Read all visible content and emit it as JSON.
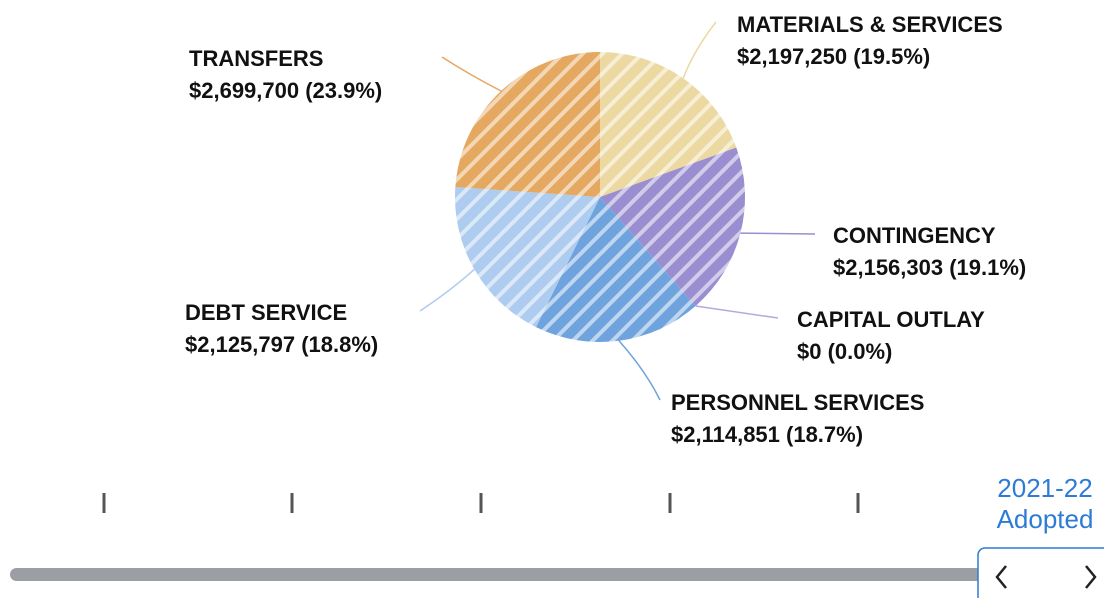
{
  "chart_data": {
    "type": "pie",
    "categories": [
      "MATERIALS & SERVICES",
      "CONTINGENCY",
      "CAPITAL OUTLAY",
      "PERSONNEL SERVICES",
      "DEBT SERVICE",
      "TRANSFERS"
    ],
    "values": [
      2197250,
      2156303,
      0,
      2114851,
      2125797,
      2699700
    ],
    "value_labels": [
      "$2,197,250 (19.5%)",
      "$2,156,303 (19.1%)",
      "$0 (0.0%)",
      "$2,114,851 (18.7%)",
      "$2,125,797 (18.8%)",
      "$2,699,700 (23.9%)"
    ],
    "colors": [
      "#ecd9a2",
      "#9a8ed0",
      "#b9a8e0",
      "#6fa3dd",
      "#aecbf0",
      "#e5a860"
    ]
  },
  "timeline": {
    "label": [
      "2021-22",
      "Adopted"
    ]
  }
}
